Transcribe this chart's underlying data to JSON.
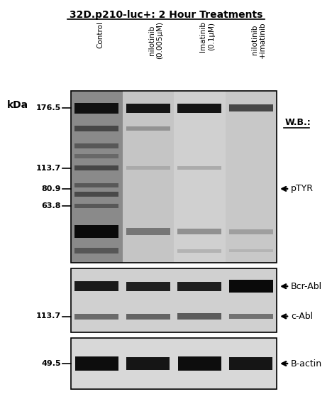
{
  "title": "32D.p210-luc+: 2 Hour Treatments",
  "wb_label": "W.B.:",
  "col_labels": [
    "Control",
    "nilotinib\n(0.005μM)",
    "Imatinib\n(0.1μM)",
    "nilotinib\n+imatinib"
  ],
  "kda_top": {
    "176.5": 0.88,
    "113.7": 0.64,
    "80.9": 0.5,
    "63.8": 0.38
  },
  "kda_mid": {
    "113.7": 0.3
  },
  "kda_bot": {
    "49.5": 0.5
  },
  "figure_bg": "#ffffff",
  "panel1_lane_bg": [
    "#8a8a8a",
    "#c5c5c5",
    "#d0d0d0",
    "#c8c8c8"
  ],
  "panel2_bg": "#d0d0d0",
  "panel3_bg": "#d8d8d8"
}
